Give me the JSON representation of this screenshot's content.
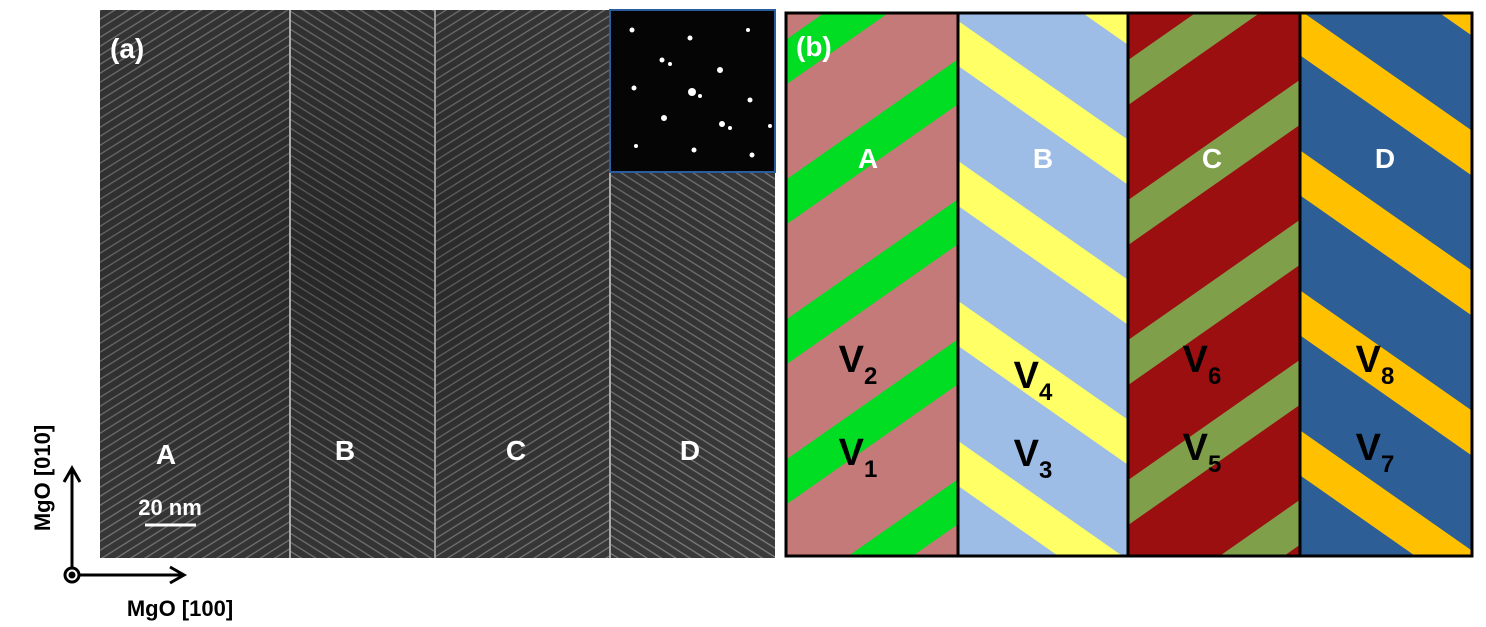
{
  "panel_a": {
    "label": "(a)",
    "domains": [
      "A",
      "B",
      "C",
      "D"
    ],
    "scale_bar": "20 nm"
  },
  "axes": {
    "vertical": "MgO [010]",
    "horizontal": "MgO [100]"
  },
  "panel_b": {
    "label": "(b)",
    "columns": [
      {
        "domain": "A",
        "upper": {
          "symbol": "V",
          "index": "2"
        },
        "lower": {
          "symbol": "V",
          "index": "1"
        }
      },
      {
        "domain": "B",
        "upper": {
          "symbol": "V",
          "index": "4"
        },
        "lower": {
          "symbol": "V",
          "index": "3"
        }
      },
      {
        "domain": "C",
        "upper": {
          "symbol": "V",
          "index": "6"
        },
        "lower": {
          "symbol": "V",
          "index": "5"
        }
      },
      {
        "domain": "D",
        "upper": {
          "symbol": "V",
          "index": "8"
        },
        "lower": {
          "symbol": "V",
          "index": "7"
        }
      }
    ]
  }
}
